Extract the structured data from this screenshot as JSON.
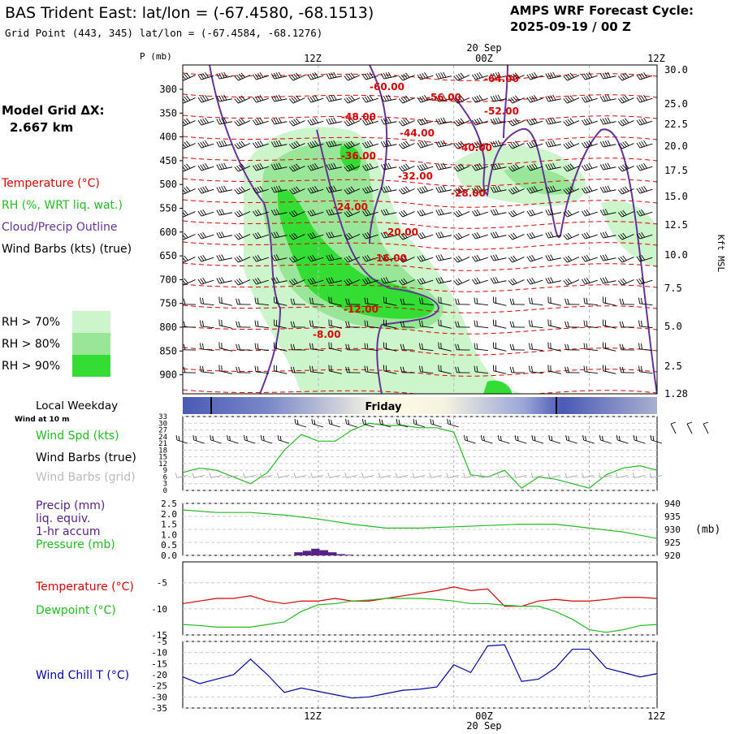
{
  "header": {
    "title": "BAS Trident East:  lat/lon = (-67.4580, -68.1513)",
    "subtitle": "Grid Point (443, 345) lat/lon = (-67.4584, -68.1276)",
    "cycle_label": "AMPS WRF Forecast Cycle:",
    "cycle_value": "2025-09-19 / 00  Z"
  },
  "left_legend": {
    "model_grid_label": "Model Grid ΔX:",
    "model_grid_value": "2.667 km",
    "temperature": "Temperature (°C)",
    "rh": "RH (%, WRT liq. wat.)",
    "cloud": "Cloud/Precip Outline",
    "wind": "Wind Barbs (kts) (true)",
    "rh_levels": [
      "RH > 70%",
      "RH > 80%",
      "RH > 90%"
    ]
  },
  "colors": {
    "temperature": "#dd0000",
    "rh70": "#ccf5cc",
    "rh80": "#99e699",
    "rh90": "#33dd33",
    "cloud": "#663399",
    "pressure": "#22bb22",
    "precip": "#552288",
    "wind_chill": "#0000aa",
    "weekday_bar": "#5566bb"
  },
  "top_axis": {
    "date_label": "20 Sep",
    "time_ticks": [
      "12Z",
      "00Z",
      "12Z"
    ]
  },
  "bottom_axis": {
    "time_ticks": [
      "12Z",
      "00Z",
      "12Z"
    ],
    "date_label": "20 Sep"
  },
  "cross_section": {
    "p_axis_label": "P (mb)",
    "pressure_ticks": [
      "300",
      "350",
      "400",
      "450",
      "500",
      "550",
      "600",
      "650",
      "700",
      "750",
      "800",
      "850",
      "900"
    ],
    "height_label": "Kft MSL",
    "height_ticks": [
      "30.0",
      "25.0",
      "22.5",
      "20.0",
      "17.5",
      "15.0",
      "12.5",
      "10.0",
      "7.5",
      "5.0",
      "2.5",
      "1.28"
    ],
    "isotherm_labels": [
      "-60.00",
      "-64.00",
      "-56.00",
      "-52.00",
      "-48.00",
      "-44.00",
      "-40.00",
      "-36.00",
      "-32.00",
      "-28.00",
      "-24.00",
      "-20.00",
      "-16.00",
      "-12.00",
      "-8.00"
    ]
  },
  "weekday": {
    "title": "Local Weekday",
    "day": "Friday"
  },
  "chart_data": [
    {
      "type": "line",
      "panel": "wind",
      "small_label": "Wind at 10 m",
      "labels": [
        "Wind Spd (kts)",
        "Wind Barbs (true)",
        "Wind Barbs (grid)"
      ],
      "yticks": [
        "33",
        "30",
        "27",
        "24",
        "21",
        "18",
        "15",
        "12",
        "9",
        "6",
        "3",
        "0"
      ],
      "ylim": [
        0,
        33
      ],
      "x": [
        0,
        3,
        6,
        9,
        12,
        15,
        18,
        21,
        24,
        27,
        30,
        33,
        36,
        39,
        42,
        45,
        48,
        51,
        54,
        57,
        60,
        63,
        66,
        69,
        72,
        75,
        78,
        81,
        84
      ],
      "series": [
        {
          "name": "Wind Spd (kts)",
          "values": [
            8,
            10,
            9,
            6,
            3,
            8,
            18,
            25,
            22,
            22,
            27,
            30,
            29,
            29,
            28,
            28,
            26,
            7,
            6,
            9,
            1,
            6,
            5,
            3,
            1,
            7,
            10,
            11,
            9
          ]
        }
      ]
    },
    {
      "type": "line",
      "panel": "precip_pressure",
      "labels": [
        "Precip (mm)",
        "liq. equiv.",
        "1-hr accum",
        "Pressure (mb)"
      ],
      "left_ticks": [
        "2.5",
        "2.0",
        "1.5",
        "1.0",
        "0.5",
        "0.0"
      ],
      "right_ticks": [
        "940",
        "935",
        "930",
        "925",
        "920"
      ],
      "right_unit": "(mb)",
      "ylim_precip": [
        0,
        2.5
      ],
      "ylim_pressure": [
        920,
        940
      ],
      "x": [
        0,
        6,
        12,
        18,
        24,
        30,
        36,
        42,
        48,
        54,
        60,
        66,
        72,
        78,
        84
      ],
      "series": [
        {
          "name": "Pressure (mb)",
          "values": [
            937.5,
            936.5,
            936.5,
            935.5,
            934.0,
            932.0,
            930.5,
            930.5,
            931.0,
            931.5,
            932.0,
            932.0,
            930.5,
            929.0,
            926.5
          ]
        },
        {
          "name": "Precip (mm)",
          "bars": [
            {
              "x": 20.5,
              "value": 0.15
            },
            {
              "x": 22,
              "value": 0.22
            },
            {
              "x": 23.5,
              "value": 0.32
            },
            {
              "x": 25,
              "value": 0.25
            },
            {
              "x": 26.5,
              "value": 0.15
            },
            {
              "x": 28,
              "value": 0.06
            },
            {
              "x": 29.5,
              "value": 0.03
            }
          ]
        }
      ]
    },
    {
      "type": "line",
      "panel": "temperature",
      "labels": [
        "Temperature (°C)",
        "Dewpoint (°C)"
      ],
      "yticks": [
        "-5",
        "-10",
        "-15"
      ],
      "ylim": [
        -15,
        -1
      ],
      "x": [
        0,
        3,
        6,
        9,
        12,
        15,
        18,
        21,
        24,
        27,
        30,
        33,
        36,
        39,
        42,
        45,
        48,
        51,
        54,
        57,
        60,
        63,
        66,
        69,
        72,
        75,
        78,
        81,
        84
      ],
      "series": [
        {
          "name": "Temperature (°C)",
          "values": [
            -9,
            -8.5,
            -8,
            -8,
            -7.5,
            -8.5,
            -9,
            -8.5,
            -8.5,
            -8,
            -8.5,
            -8.5,
            -8,
            -7.5,
            -7,
            -6.5,
            -5.8,
            -6.5,
            -6.2,
            -9.5,
            -9.5,
            -8.5,
            -8.2,
            -8.5,
            -8.5,
            -8.2,
            -7.8,
            -7.8,
            -8
          ],
          "color": "#dd0000"
        },
        {
          "name": "Dewpoint (°C)",
          "values": [
            -13,
            -13.2,
            -13.5,
            -13.5,
            -13.5,
            -13,
            -12.5,
            -10.5,
            -9.2,
            -9,
            -8.5,
            -8.3,
            -8,
            -8,
            -8,
            -8.2,
            -8.5,
            -9,
            -9,
            -9.3,
            -9.5,
            -9.5,
            -10.5,
            -12,
            -14,
            -14.5,
            -14,
            -13.2,
            -13
          ],
          "color": "#22bb22"
        }
      ]
    },
    {
      "type": "line",
      "panel": "wind_chill",
      "labels": [
        "Wind Chill T (°C)"
      ],
      "yticks": [
        "-5",
        "-10",
        "-15",
        "-20",
        "-25",
        "-30",
        "-35"
      ],
      "ylim": [
        -35,
        -5
      ],
      "x": [
        0,
        3,
        6,
        9,
        12,
        15,
        18,
        21,
        24,
        27,
        30,
        33,
        36,
        39,
        42,
        45,
        48,
        51,
        54,
        57,
        60,
        63,
        66,
        69,
        72,
        75,
        78,
        81,
        84
      ],
      "series": [
        {
          "name": "Wind Chill T (°C)",
          "values": [
            -21,
            -24,
            -22,
            -20,
            -13,
            -20,
            -28,
            -26,
            -27.5,
            -29,
            -30.5,
            -30,
            -28.5,
            -27,
            -26.5,
            -25.5,
            -15.5,
            -19,
            -7,
            -6.5,
            -23,
            -22,
            -17,
            -8.5,
            -8.5,
            -17,
            -19,
            -21,
            -19.5
          ],
          "color": "#0000aa"
        }
      ]
    }
  ]
}
